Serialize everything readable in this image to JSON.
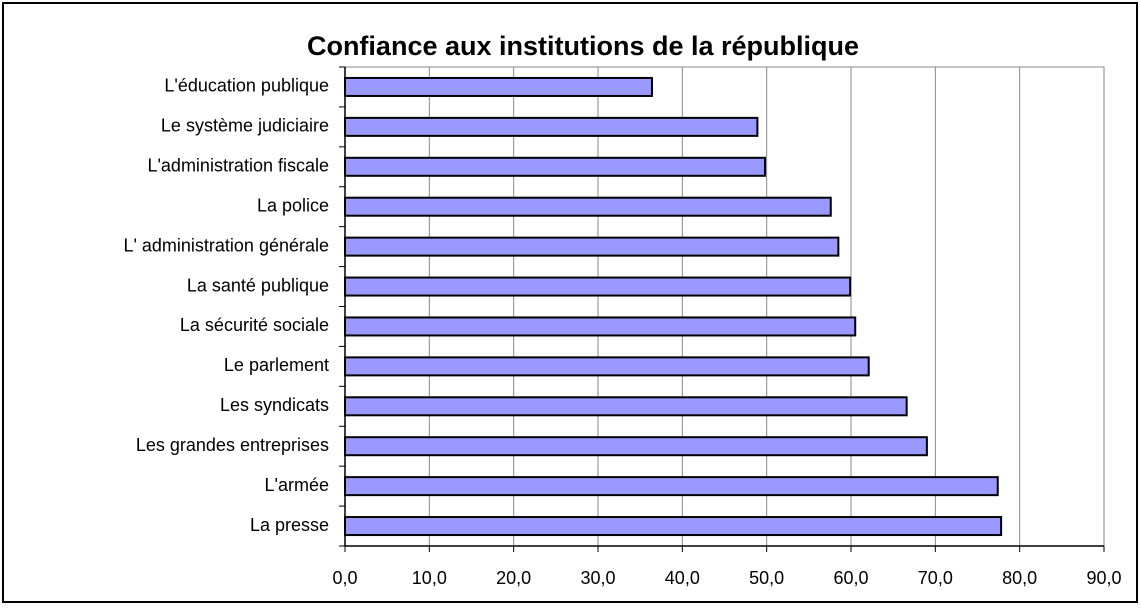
{
  "chart_data": {
    "type": "barh",
    "title": "Confiance aux institutions de la république",
    "categories": [
      "L'éducation publique",
      "Le système judiciaire",
      "L'administration fiscale",
      "La police",
      "L' administration générale",
      "La santé publique",
      "La sécurité sociale",
      "Le parlement",
      "Les syndicats",
      "Les grandes entreprises",
      "L'armée",
      "La presse"
    ],
    "values": [
      36.4,
      48.9,
      49.8,
      57.6,
      58.5,
      59.9,
      60.5,
      62.1,
      66.6,
      69.0,
      77.4,
      77.8
    ],
    "color": "#9999ff",
    "xlim": [
      0,
      90
    ],
    "xticks": [
      {
        "value": 0,
        "label": "0,0"
      },
      {
        "value": 10,
        "label": "10,0"
      },
      {
        "value": 20,
        "label": "20,0"
      },
      {
        "value": 30,
        "label": "30,0"
      },
      {
        "value": 40,
        "label": "40,0"
      },
      {
        "value": 50,
        "label": "50,0"
      },
      {
        "value": 60,
        "label": "60,0"
      },
      {
        "value": 70,
        "label": "70,0"
      },
      {
        "value": 80,
        "label": "80,0"
      },
      {
        "value": 90,
        "label": "90,0"
      }
    ],
    "grid": true
  }
}
